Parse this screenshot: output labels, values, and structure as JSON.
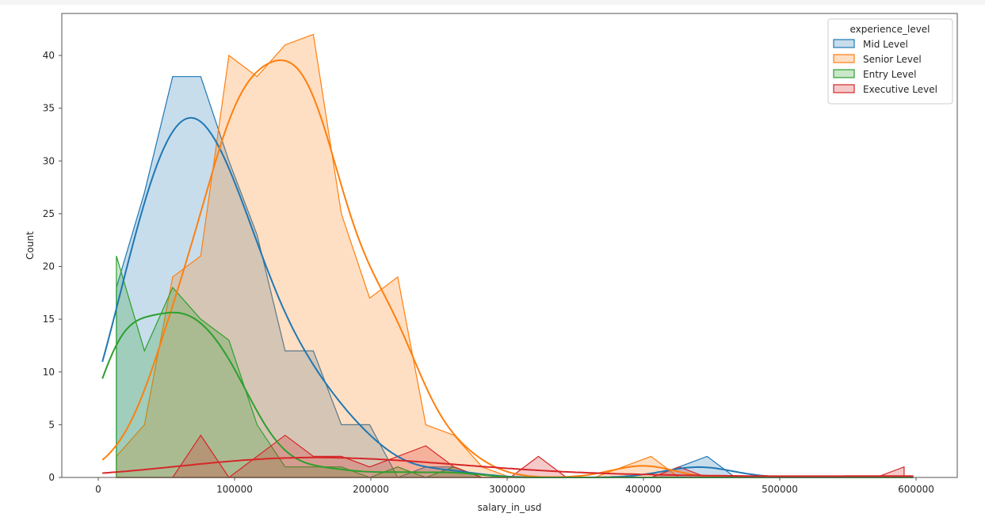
{
  "chart_data": {
    "type": "histogram_with_kde",
    "title": "",
    "xlabel": "salary_in_usd",
    "ylabel": "Count",
    "xlim": [
      -26000,
      630000
    ],
    "ylim": [
      0,
      44
    ],
    "x_ticks": [
      0,
      100000,
      200000,
      300000,
      400000,
      500000,
      600000
    ],
    "x_tick_labels": [
      "0",
      "100000",
      "200000",
      "300000",
      "400000",
      "500000",
      "600000"
    ],
    "y_ticks": [
      0,
      5,
      10,
      15,
      20,
      25,
      30,
      35,
      40
    ],
    "y_tick_labels": [
      "0",
      "5",
      "10",
      "15",
      "20",
      "25",
      "30",
      "35",
      "40"
    ],
    "grid": false,
    "element": "poly",
    "bin_width": 20640,
    "bin_centers": [
      13300,
      33900,
      54600,
      75200,
      95900,
      116500,
      137100,
      157800,
      178400,
      199100,
      219700,
      240300,
      261000,
      281600,
      302300,
      322900,
      343500,
      364200,
      384800,
      405500,
      426100,
      446700,
      467400,
      488000,
      508700,
      529300,
      549900,
      570600,
      591200
    ],
    "legend": {
      "title": "experience_level",
      "position": "upper right",
      "entries": [
        "Mid Level",
        "Senior Level",
        "Entry Level",
        "Executive Level"
      ]
    },
    "series": [
      {
        "name": "Mid Level",
        "color": "#1f77b4",
        "counts": [
          18,
          27,
          38,
          38,
          30,
          23,
          12,
          12,
          5,
          5,
          0,
          1,
          1,
          0,
          0,
          0,
          0,
          0,
          0,
          0,
          1,
          2,
          0,
          0,
          0,
          0,
          0,
          0,
          0
        ],
        "kde_peak": {
          "x": 66000,
          "y": 35
        },
        "kde_start": {
          "x": 3000,
          "y": 10.5
        }
      },
      {
        "name": "Senior Level",
        "color": "#ff7f0e",
        "counts": [
          2,
          5,
          19,
          21,
          40,
          38,
          41,
          42,
          25,
          17,
          19,
          5,
          4,
          1,
          0,
          0,
          0,
          0,
          1,
          2,
          0,
          0,
          0,
          0,
          0,
          0,
          0,
          0,
          0
        ],
        "kde_peak": {
          "x": 130000,
          "y": 40.5
        },
        "kde_start": {
          "x": 3000,
          "y": 1.6
        }
      },
      {
        "name": "Entry Level",
        "color": "#2ca02c",
        "counts": [
          21,
          12,
          18,
          15,
          13,
          5,
          1,
          1,
          1,
          0,
          1,
          0,
          1,
          0,
          0,
          0,
          0,
          0,
          0,
          0,
          0,
          0,
          0,
          0,
          0,
          0,
          0,
          0,
          0
        ],
        "kde_peak": {
          "x": 54000,
          "y": 16
        },
        "kde_start": {
          "x": 3000,
          "y": 9.1
        }
      },
      {
        "name": "Executive Level",
        "color": "#d62728",
        "counts": [
          0,
          0,
          0,
          4,
          0,
          2,
          4,
          2,
          2,
          1,
          2,
          3,
          1,
          0,
          0,
          2,
          0,
          0,
          0,
          0,
          1,
          0,
          0,
          0,
          0,
          0,
          0,
          0,
          1
        ],
        "kde_peak": {
          "x": 160000,
          "y": 2
        },
        "kde_start": {
          "x": 3000,
          "y": 0.4
        }
      }
    ]
  }
}
